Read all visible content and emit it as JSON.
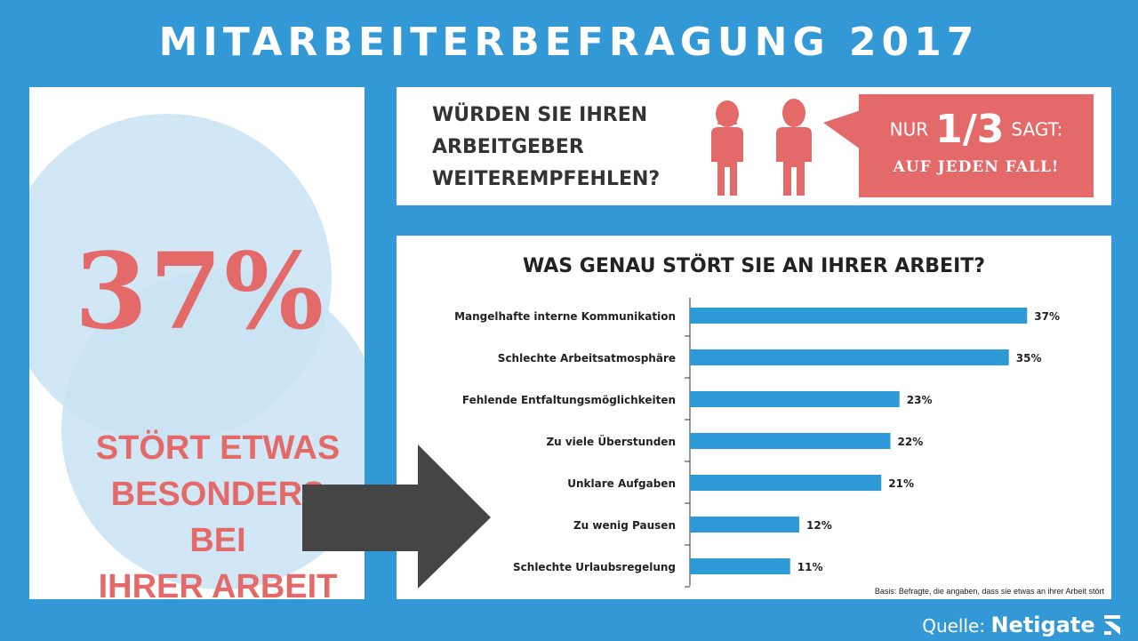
{
  "title": "MITARBEITERBEFRAGUNG 2017",
  "left": {
    "big_percent": "37%",
    "text_lines": [
      "STÖRT ETWAS",
      "BESONDERS BEI",
      "IHRER ARBEIT"
    ]
  },
  "recommend": {
    "question_lines": [
      "WÜRDEN SIE IHREN",
      "ARBEITGEBER",
      "WEITEREMPFEHLEN?"
    ],
    "bubble_prefix": "NUR",
    "bubble_fraction": "1/3",
    "bubble_suffix": "SAGT:",
    "bubble_line2": "AUF JEDEN FALL!",
    "accent_color": "#e46a6a"
  },
  "footnote": "Basis: Befragte, die angaben, dass sie etwas an ihrer Arbeit stört",
  "source": {
    "label": "Quelle:",
    "brand": "Netigate"
  },
  "colors": {
    "background": "#3399d6",
    "bar": "#2e9bd8",
    "accent": "#e46a6a",
    "arrow": "#454545"
  },
  "chart_data": {
    "type": "bar",
    "orientation": "horizontal",
    "title": "WAS GENAU STÖRT SIE AN IHRER ARBEIT?",
    "categories": [
      "Mangelhafte interne Kommunikation",
      "Schlechte Arbeitsatmosphäre",
      "Fehlende Entfaltungsmöglichkeiten",
      "Zu viele Überstunden",
      "Unklare Aufgaben",
      "Zu wenig Pausen",
      "Schlechte Urlaubsregelung"
    ],
    "values": [
      37,
      35,
      23,
      22,
      21,
      12,
      11
    ],
    "value_labels": [
      "37%",
      "35%",
      "23%",
      "22%",
      "21%",
      "12%",
      "11%"
    ],
    "unit": "%",
    "xlim": [
      0,
      40
    ],
    "grid": false,
    "legend": "none"
  }
}
